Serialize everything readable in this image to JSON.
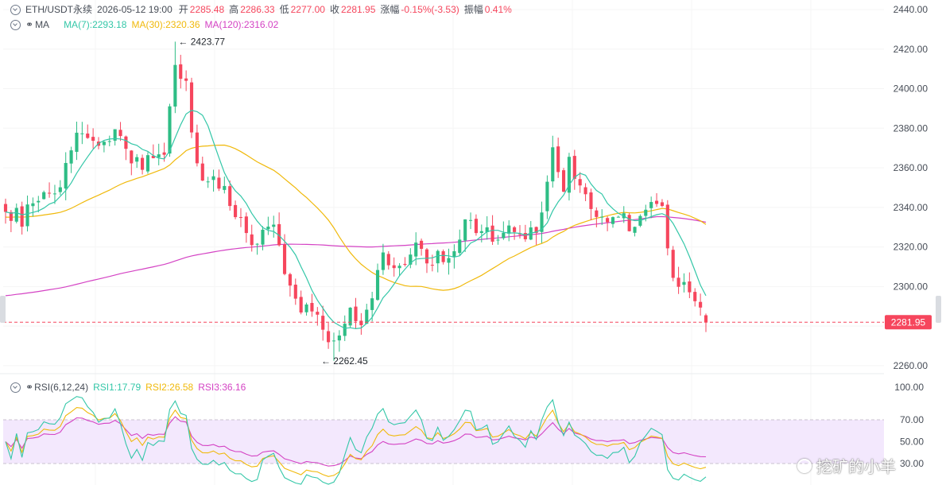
{
  "header": {
    "symbol": "ETH/USDT永续",
    "datetime": "2026-05-12 19:00",
    "open_label": "开",
    "open": "2285.48",
    "high_label": "高",
    "high": "2286.33",
    "low_label": "低",
    "low": "2277.00",
    "close_label": "收",
    "close": "2281.95",
    "change_label": "涨幅",
    "change": "-0.15%(-3.53)",
    "amplitude_label": "振幅",
    "amplitude": "0.41%"
  },
  "ma_legend": {
    "label": "MA",
    "ma7": "MA(7):2293.18",
    "ma30": "MA(30):2320.36",
    "ma120": "MA(120):2316.02"
  },
  "rsi_legend": {
    "label": "RSI(6,12,24)",
    "rsi1": "RSI1:17.79",
    "rsi2": "RSI2:26.58",
    "rsi3": "RSI3:36.16"
  },
  "watermark": "挖矿的小羊",
  "colors": {
    "up": "#2ebd85",
    "down": "#f6465d",
    "ma7": "#34c7a8",
    "ma30": "#f0b90b",
    "ma120": "#d443c4",
    "rsi1": "#34c7a8",
    "rsi2": "#f0b90b",
    "rsi3": "#d443c4",
    "last_price": "#f6465d",
    "rsi_band": "#f3e8fd",
    "icon_gray": "#707a8a"
  },
  "chart_data": [
    {
      "type": "candlestick",
      "interval_note": "hourly bars",
      "ylim": [
        2255,
        2440
      ],
      "y_ticks": [
        "2440.00",
        "2420.00",
        "2400.00",
        "2380.00",
        "2360.00",
        "2340.00",
        "2320.00",
        "2300.00",
        "2260.00"
      ],
      "last_price": 2281.95,
      "last_price_label": "2281.95",
      "max_marker": {
        "value": 2423.77,
        "label": "2423.77",
        "bar": 31
      },
      "min_marker": {
        "value": 2262.45,
        "label": "2262.45",
        "bar": 60
      },
      "series_ma": {
        "ma7_last": 2293.18,
        "ma30_last": 2320.36,
        "ma120_last": 2316.02
      },
      "price_anchors": [
        [
          0,
          2340
        ],
        [
          3,
          2333
        ],
        [
          6,
          2345
        ],
        [
          10,
          2348
        ],
        [
          13,
          2380
        ],
        [
          17,
          2372
        ],
        [
          20,
          2378
        ],
        [
          23,
          2360
        ],
        [
          26,
          2364
        ],
        [
          29,
          2368
        ],
        [
          31,
          2415
        ],
        [
          33,
          2400
        ],
        [
          35,
          2360
        ],
        [
          37,
          2352
        ],
        [
          40,
          2350
        ],
        [
          43,
          2333
        ],
        [
          45,
          2318
        ],
        [
          47,
          2332
        ],
        [
          49,
          2328
        ],
        [
          51,
          2308
        ],
        [
          53,
          2290
        ],
        [
          56,
          2285
        ],
        [
          59,
          2275
        ],
        [
          61,
          2273
        ],
        [
          63,
          2286
        ],
        [
          65,
          2280
        ],
        [
          67,
          2298
        ],
        [
          69,
          2316
        ],
        [
          72,
          2312
        ],
        [
          75,
          2318
        ],
        [
          78,
          2315
        ],
        [
          81,
          2316
        ],
        [
          84,
          2333
        ],
        [
          87,
          2328
        ],
        [
          90,
          2326
        ],
        [
          93,
          2330
        ],
        [
          96,
          2326
        ],
        [
          98,
          2333
        ],
        [
          100,
          2368
        ],
        [
          102,
          2350
        ],
        [
          103,
          2362
        ],
        [
          105,
          2350
        ],
        [
          107,
          2340
        ],
        [
          109,
          2336
        ],
        [
          112,
          2336
        ],
        [
          114,
          2331
        ],
        [
          116,
          2338
        ],
        [
          118,
          2340
        ],
        [
          120,
          2337
        ],
        [
          122,
          2305
        ],
        [
          124,
          2300
        ],
        [
          125,
          2293
        ],
        [
          127,
          2286
        ],
        [
          128,
          2281.95
        ]
      ]
    },
    {
      "type": "line",
      "title": "RSI(6,12,24)",
      "ylim": [
        0,
        100
      ],
      "y_ticks": [
        "100.00",
        "70.00",
        "50.00",
        "30.00"
      ],
      "band": [
        30,
        70
      ],
      "series": [
        {
          "name": "RSI1",
          "last": 17.79
        },
        {
          "name": "RSI2",
          "last": 26.58
        },
        {
          "name": "RSI3",
          "last": 36.16
        }
      ]
    }
  ]
}
